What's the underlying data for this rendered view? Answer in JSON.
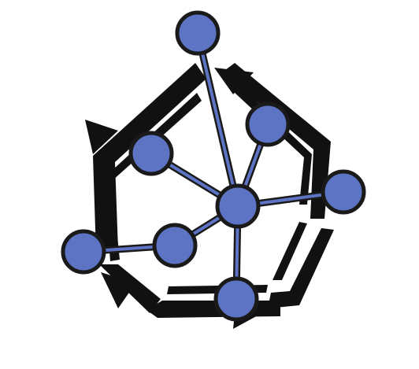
{
  "logo": {
    "name": "network-cycle-emblem",
    "background_color": "#ffffff",
    "frame_color": "#111111",
    "node_fill_color": "#5d73c4",
    "node_stroke_color": "#1a1a1a",
    "edge_color": "#5d73c4"
  }
}
